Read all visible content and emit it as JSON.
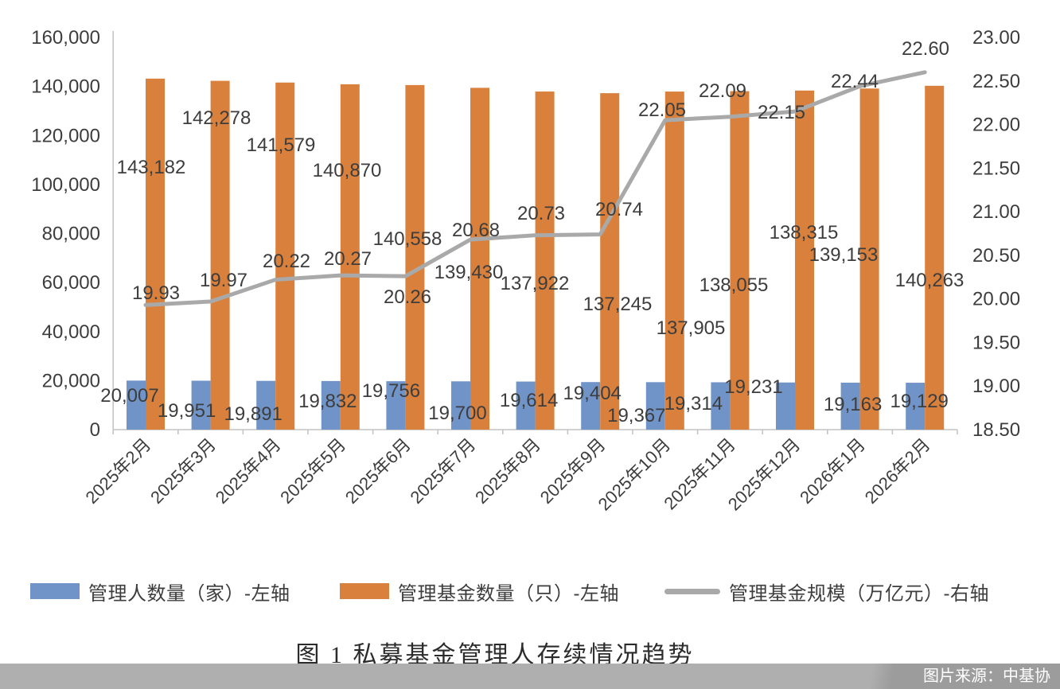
{
  "chart_data": {
    "type": "combo-bar-line",
    "title": "图 1 私募基金管理人存续情况趋势",
    "grid": false,
    "legend_position": "bottom",
    "categories": [
      "2025年2月",
      "2025年3月",
      "2025年4月",
      "2025年5月",
      "2025年6月",
      "2025年7月",
      "2025年8月",
      "2025年9月",
      "2025年10月",
      "2025年11月",
      "2025年12月",
      "2026年1月",
      "2026年2月"
    ],
    "series": [
      {
        "name": "管理人数量（家）-左轴",
        "type": "bar",
        "axis": "left",
        "color": "#7094c8",
        "values": [
          20007,
          19951,
          19891,
          19832,
          19756,
          19700,
          19614,
          19404,
          19367,
          19314,
          19231,
          19163,
          19129
        ],
        "labels": [
          "20,007",
          "19,951",
          "19,891",
          "19,832",
          "19,756",
          "19,700",
          "19,614",
          "19,404",
          "19,367",
          "19,314",
          "19,231",
          "19,163",
          "19,129"
        ]
      },
      {
        "name": "管理基金数量（只）-左轴",
        "type": "bar",
        "axis": "left",
        "color": "#d9813c",
        "values": [
          143182,
          142278,
          141579,
          140870,
          140558,
          139430,
          137922,
          137245,
          137905,
          138055,
          138315,
          139153,
          140263
        ],
        "labels": [
          "143,182",
          "142,278",
          "141,579",
          "140,870",
          "140,558",
          "139,430",
          "137,922",
          "137,245",
          "137,905",
          "138,055",
          "138,315",
          "139,153",
          "140,263"
        ]
      },
      {
        "name": "管理基金规模（万亿元）-右轴",
        "type": "line",
        "axis": "right",
        "color": "#a9a9a9",
        "values": [
          19.93,
          19.97,
          20.22,
          20.27,
          20.26,
          20.68,
          20.73,
          20.74,
          22.05,
          22.09,
          22.15,
          22.44,
          22.6
        ],
        "labels": [
          "19.93",
          "19.97",
          "20.22",
          "20.27",
          "20.26",
          "20.68",
          "20.73",
          "20.74",
          "22.05",
          "22.09",
          "22.15",
          "22.44",
          "22.60"
        ]
      }
    ],
    "left_axis": {
      "min": 0,
      "max": 160000,
      "tick_step": 20000,
      "tick_labels": [
        "160,000",
        "140,000",
        "120,000",
        "100,000",
        "80,000",
        "60,000",
        "40,000",
        "20,000",
        "0"
      ]
    },
    "right_axis": {
      "min": 18.5,
      "max": 23.0,
      "tick_step": 0.5,
      "tick_labels": [
        "23.00",
        "22.50",
        "22.00",
        "21.50",
        "21.00",
        "20.50",
        "20.00",
        "19.50",
        "19.00",
        "18.50"
      ]
    }
  },
  "source_bar": {
    "text": "图片来源：中基协",
    "background": "#ababab",
    "text_color": "#ffffff"
  }
}
